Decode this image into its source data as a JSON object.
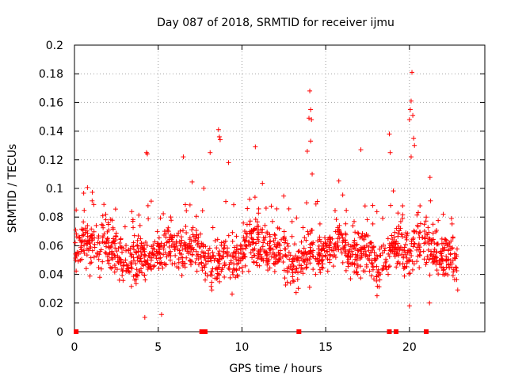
{
  "chart_data": {
    "type": "scatter",
    "title": "Day 087 of 2018, SRMTID for receiver ijmu",
    "xlabel": "GPS time / hours",
    "ylabel": "SRMTID / TECUs",
    "xlim": [
      0,
      24.5
    ],
    "ylim": [
      0,
      0.2
    ],
    "xticks": [
      0,
      5,
      10,
      15,
      20
    ],
    "xtick_labels": [
      "0",
      "5",
      "10",
      "15",
      "20"
    ],
    "yticks": [
      0,
      0.02,
      0.04,
      0.06,
      0.08,
      0.1,
      0.12,
      0.14,
      0.16,
      0.18,
      0.2
    ],
    "ytick_labels": [
      "0",
      "0.02",
      "0.04",
      "0.06",
      "0.08",
      "0.1",
      "0.12",
      "0.14",
      "0.16",
      "0.18",
      "0.2"
    ],
    "grid": true,
    "marker": "+",
    "color": "#ff0000",
    "x_data_range": [
      0,
      22.9
    ],
    "typical_y_range": [
      0.02,
      0.09
    ],
    "outliers": [
      {
        "x": 4.3,
        "y": 0.125
      },
      {
        "x": 4.35,
        "y": 0.124
      },
      {
        "x": 6.5,
        "y": 0.122
      },
      {
        "x": 8.1,
        "y": 0.125
      },
      {
        "x": 8.6,
        "y": 0.141
      },
      {
        "x": 8.65,
        "y": 0.136
      },
      {
        "x": 8.7,
        "y": 0.134
      },
      {
        "x": 9.2,
        "y": 0.118
      },
      {
        "x": 10.8,
        "y": 0.129
      },
      {
        "x": 14.05,
        "y": 0.168
      },
      {
        "x": 14.1,
        "y": 0.155
      },
      {
        "x": 14.0,
        "y": 0.149
      },
      {
        "x": 14.15,
        "y": 0.148
      },
      {
        "x": 14.1,
        "y": 0.133
      },
      {
        "x": 13.9,
        "y": 0.126
      },
      {
        "x": 17.1,
        "y": 0.127
      },
      {
        "x": 18.8,
        "y": 0.138
      },
      {
        "x": 18.85,
        "y": 0.125
      },
      {
        "x": 20.15,
        "y": 0.181
      },
      {
        "x": 20.1,
        "y": 0.161
      },
      {
        "x": 20.05,
        "y": 0.155
      },
      {
        "x": 20.2,
        "y": 0.151
      },
      {
        "x": 20.0,
        "y": 0.148
      },
      {
        "x": 20.25,
        "y": 0.135
      },
      {
        "x": 20.3,
        "y": 0.13
      },
      {
        "x": 20.1,
        "y": 0.122
      },
      {
        "x": 4.2,
        "y": 0.01
      },
      {
        "x": 5.2,
        "y": 0.012
      },
      {
        "x": 20.0,
        "y": 0.018
      },
      {
        "x": 21.2,
        "y": 0.02
      }
    ],
    "zero_values_x": [
      0.1,
      7.6,
      7.8,
      13.4,
      18.8,
      19.2,
      21.0
    ]
  }
}
